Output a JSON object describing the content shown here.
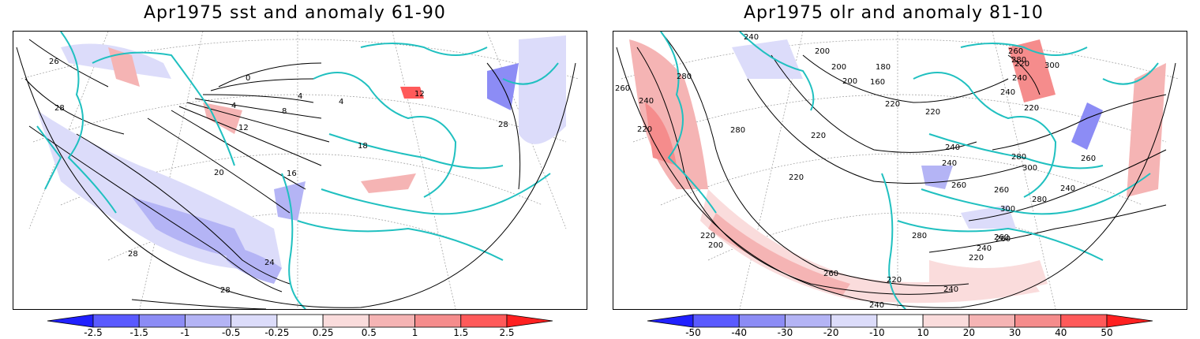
{
  "panels": [
    {
      "title": "Apr1975 sst and anomaly 61-90",
      "contour_labels": [
        "26",
        "28",
        "0",
        "4",
        "4",
        "8",
        "12",
        "16",
        "20",
        "24",
        "28",
        "28",
        "28",
        "12",
        "18",
        "4"
      ],
      "colorbar": {
        "ticks": [
          "-2.5",
          "-1.5",
          "-1",
          "-0.5",
          "-0.25",
          "0.25",
          "0.5",
          "1",
          "1.5",
          "2.5"
        ],
        "colors": [
          "#2020ff",
          "#5a5aff",
          "#8c8cf5",
          "#b4b4f5",
          "#dcdcfa",
          "#ffffff",
          "#fadcdc",
          "#f5b4b4",
          "#f58c8c",
          "#ff5a5a",
          "#ff2020"
        ]
      }
    },
    {
      "title": "Apr1975 olr and anomaly 81-10",
      "contour_labels": [
        "240",
        "200",
        "200",
        "200",
        "180",
        "160",
        "260",
        "220",
        "300",
        "280",
        "240",
        "280",
        "240",
        "260",
        "220",
        "220",
        "220",
        "220",
        "240",
        "220",
        "240",
        "280",
        "300",
        "260",
        "260",
        "280",
        "240",
        "240",
        "260",
        "300",
        "280",
        "260",
        "220",
        "280",
        "260",
        "240",
        "220",
        "220",
        "220",
        "260",
        "200",
        "240",
        "240"
      ],
      "colorbar": {
        "ticks": [
          "-50",
          "-40",
          "-30",
          "-20",
          "-10",
          "10",
          "20",
          "30",
          "40",
          "50"
        ],
        "colors": [
          "#2020ff",
          "#5a5aff",
          "#8c8cf5",
          "#b4b4f5",
          "#dcdcfa",
          "#ffffff",
          "#fadcdc",
          "#f5b4b4",
          "#f58c8c",
          "#ff5a5a",
          "#ff2020"
        ]
      }
    }
  ],
  "colors": {
    "coastline": "#20c0c0",
    "neg_anom": "#b4b4f5",
    "pos_anom": "#f5b4b4"
  }
}
